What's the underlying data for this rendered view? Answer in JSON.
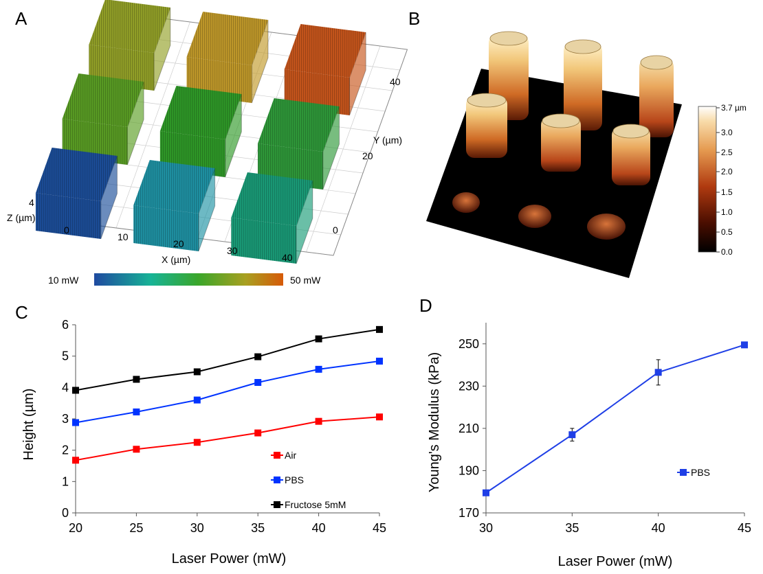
{
  "panels": {
    "a": {
      "letter": "A"
    },
    "b": {
      "letter": "B"
    },
    "c": {
      "letter": "C"
    },
    "d": {
      "letter": "D"
    }
  },
  "panel_a": {
    "x_axis_label": "X (µm)",
    "y_axis_label": "Y (µm)",
    "z_axis_label": "Z (µm)",
    "z_tick": "4",
    "x_ticks": [
      "0",
      "10",
      "20",
      "30",
      "40"
    ],
    "y_ticks": [
      "0",
      "20",
      "40"
    ],
    "colorbar_min_label": "10 mW",
    "colorbar_max_label": "50 mW",
    "colorbar_colors": [
      "#1f4aa0",
      "#17b396",
      "#3aa62a",
      "#a8a021",
      "#d65a08"
    ],
    "block_colors": [
      [
        "#1c4e9a",
        "#1f93a5",
        "#1a9c78"
      ],
      [
        "#5a9e24",
        "#2f9a28",
        "#2f9a3a"
      ],
      [
        "#94a228",
        "#c29a2a",
        "#c8561c"
      ]
    ]
  },
  "panel_b": {
    "colorbar_ticks": [
      "3.7 µm",
      "3.0",
      "2.5",
      "2.0",
      "1.5",
      "1.0",
      "0.5",
      "0.0"
    ]
  },
  "chart_data": [
    {
      "type": "line",
      "xlabel": "Laser Power (mW)",
      "ylabel": "Height (µm)",
      "x": [
        20,
        25,
        30,
        35,
        40,
        45
      ],
      "xlim": [
        20,
        45
      ],
      "ylim": [
        0,
        6
      ],
      "x_ticks": [
        "20",
        "25",
        "30",
        "35",
        "40",
        "45"
      ],
      "y_ticks": [
        "0",
        "1",
        "2",
        "3",
        "4",
        "5",
        "6"
      ],
      "grid": false,
      "legend_position": "bottom-right",
      "series": [
        {
          "name": "Air",
          "color": "#ff0000",
          "values": [
            1.68,
            2.03,
            2.25,
            2.55,
            2.92,
            3.06
          ]
        },
        {
          "name": "PBS",
          "color": "#0033ff",
          "values": [
            2.88,
            3.22,
            3.6,
            4.16,
            4.58,
            4.84
          ]
        },
        {
          "name": "Fructose 5mM",
          "color": "#000000",
          "values": [
            3.91,
            4.26,
            4.5,
            4.98,
            5.55,
            5.85
          ]
        }
      ]
    },
    {
      "type": "line",
      "xlabel": "Laser Power (mW)",
      "ylabel": "Young's Modulus (kPa)",
      "x": [
        30,
        35,
        40,
        45
      ],
      "xlim": [
        30,
        45
      ],
      "ylim": [
        170,
        260
      ],
      "x_ticks": [
        "30",
        "35",
        "40",
        "45"
      ],
      "y_ticks": [
        "170",
        "190",
        "210",
        "230",
        "250"
      ],
      "grid": false,
      "legend_position": "right",
      "series": [
        {
          "name": "PBS",
          "color": "#1f3fe6",
          "values": [
            179.5,
            207.0,
            236.5,
            249.5
          ],
          "error": [
            0,
            3,
            6,
            0
          ]
        }
      ]
    }
  ]
}
